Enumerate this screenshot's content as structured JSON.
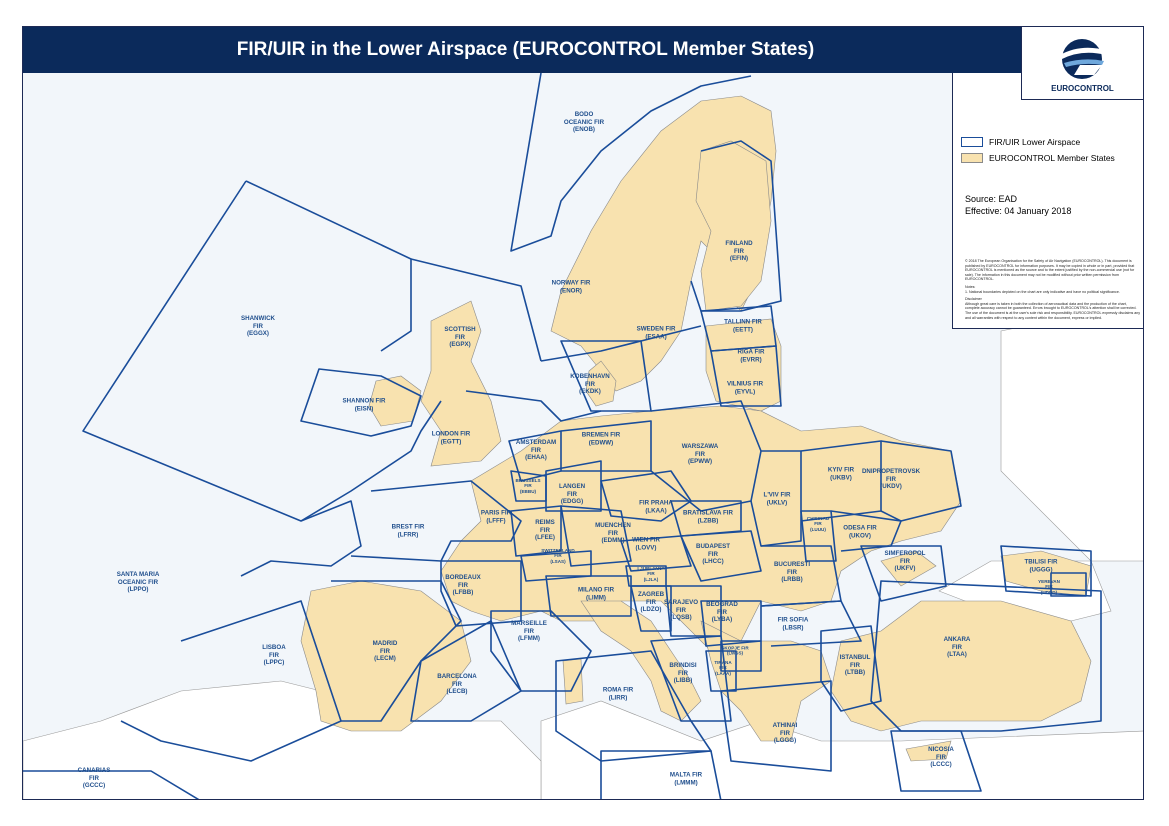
{
  "header": {
    "title": "FIR/UIR in the Lower Airspace (EUROCONTROL Member States)"
  },
  "logo": {
    "text": "EUROCONTROL"
  },
  "legend": {
    "items": [
      {
        "label": "FIR/UIR Lower Airspace",
        "kind": "fir-boundary",
        "color": "#1a4d9a"
      },
      {
        "label": "EUROCONTROL Member States",
        "kind": "member-state-fill",
        "color": "#f8e2af"
      }
    ],
    "source": "Source: EAD",
    "effective": "Effective: 04 January 2018",
    "copyright": "© 2018 The European Organisation for the Safety of Air Navigation (EUROCONTROL). This document is published by EUROCONTROL for information purposes. It may be copied in whole or in part, provided that EUROCONTROL is mentioned as the source and to the extent justified by the non-commercial use (not for sale). The information in this document may not be modified without prior written permission from EUROCONTROL.",
    "notes_title": "Notes:",
    "notes": "1. National boundaries depicted on the chart are only indicative and have no political significance.",
    "disclaimer_title": "Disclaimer",
    "disclaimer": "Although great care is taken in both the collection of aeronautical data and the production of the chart, complete accuracy cannot be guaranteed. Errors brought to EUROCONTROL's attention shall be corrected. The use of the document is at the user's sole risk and responsibility. EUROCONTROL expressly disclaims any and all warranties with respect to any content within the document, express or implied."
  },
  "colors": {
    "sea": "#f2f6fa",
    "member_state": "#f8e2af",
    "fir_line": "#1a4d9a",
    "header": "#0b2a5b",
    "label": "#1f4e8c"
  },
  "firs": [
    {
      "id": "bodo",
      "text": "BODO\nOCEANIC FIR\n(ENOB)"
    },
    {
      "id": "shanwick",
      "text": "SHANWICK\nFIR\n(EGGX)"
    },
    {
      "id": "scottish",
      "text": "SCOTTISH\nFIR\n(EGPX)"
    },
    {
      "id": "shannon",
      "text": "SHANNON FIR\n(EISN)"
    },
    {
      "id": "london",
      "text": "LONDON FIR\n(EGTT)"
    },
    {
      "id": "norway",
      "text": "NORWAY FIR\n(ENOR)"
    },
    {
      "id": "sweden",
      "text": "SWEDEN FIR\n(ESAA)"
    },
    {
      "id": "finland",
      "text": "FINLAND\nFIR\n(EFIN)"
    },
    {
      "id": "tallinn",
      "text": "TALLINN FIR\n(EETT)"
    },
    {
      "id": "riga",
      "text": "RIGA FIR\n(EVRR)"
    },
    {
      "id": "vilnius",
      "text": "VILNIUS FIR\n(EYVL)"
    },
    {
      "id": "kobenhavn",
      "text": "KOBENHAVN\nFIR\n(EKDK)"
    },
    {
      "id": "amsterdam",
      "text": "AMSTERDAM\nFIR\n(EHAA)"
    },
    {
      "id": "bremen",
      "text": "BREMEN FIR\n(EDWW)"
    },
    {
      "id": "warszawa",
      "text": "WARSZAWA\nFIR\n(EPWW)"
    },
    {
      "id": "brussels",
      "text": "BRUSSELS\nFIR\n(EBBU)",
      "small": true
    },
    {
      "id": "langen",
      "text": "LANGEN\nFIR\n(EDGG)"
    },
    {
      "id": "paris",
      "text": "PARIS FIR\n(LFFF)"
    },
    {
      "id": "reims",
      "text": "REIMS\nFIR\n(LFEE)"
    },
    {
      "id": "praha",
      "text": "FIR PRAHA\n(LKAA)"
    },
    {
      "id": "muenchen",
      "text": "MUENCHEN\nFIR\n(EDMM)"
    },
    {
      "id": "bratislava",
      "text": "BRATISLAVA FIR\n(LZBB)"
    },
    {
      "id": "lviv",
      "text": "L'VIV FIR\n(UKLV)"
    },
    {
      "id": "kyiv",
      "text": "KYIV FIR\n(UKBV)"
    },
    {
      "id": "dnipro",
      "text": "DNIPROPETROVSK\nFIR\n(UKDV)"
    },
    {
      "id": "brest",
      "text": "BREST FIR\n(LFRR)"
    },
    {
      "id": "wien",
      "text": "WIEN FIR\n(LOVV)"
    },
    {
      "id": "budapest",
      "text": "BUDAPEST\nFIR\n(LHCC)"
    },
    {
      "id": "chisinau",
      "text": "CHISINAU\nFIR\n(LUUU)",
      "small": true
    },
    {
      "id": "odesa",
      "text": "ODESA FIR\n(UKOV)"
    },
    {
      "id": "switzerland",
      "text": "SWITZERLAND\nFIR\n(LSAS)",
      "small": true
    },
    {
      "id": "bordeaux",
      "text": "BORDEAUX\nFIR\n(LFBB)"
    },
    {
      "id": "ljubljana",
      "text": "LJUBLJANA\nFIR\n(LJLA)",
      "small": true
    },
    {
      "id": "santamaria",
      "text": "SANTA MARIA\nOCEANIC FIR\n(LPPO)"
    },
    {
      "id": "milano",
      "text": "MILANO FIR\n(LIMM)"
    },
    {
      "id": "zagreb",
      "text": "ZAGREB\nFIR\n(LDZO)"
    },
    {
      "id": "sarajevo",
      "text": "SARAJEVO\nFIR\n(LQSB)"
    },
    {
      "id": "beograd",
      "text": "BEOGRAD\nFIR\n(LYBA)"
    },
    {
      "id": "bucuresti",
      "text": "BUCURESTI\nFIR\n(LRBB)"
    },
    {
      "id": "simferopol",
      "text": "SIMFEROPOL\nFIR\n(UKFV)"
    },
    {
      "id": "tbilisi",
      "text": "TBILISI FIR\n(UGGG)"
    },
    {
      "id": "yerevan",
      "text": "YEREVAN\nFIR\n(UDDD)",
      "small": true
    },
    {
      "id": "marseille",
      "text": "MARSEILLE\nFIR\n(LFMM)"
    },
    {
      "id": "sofia",
      "text": "FIR SOFIA\n(LBSR)"
    },
    {
      "id": "lisboa",
      "text": "LISBOA\nFIR\n(LPPC)"
    },
    {
      "id": "madrid",
      "text": "MADRID\nFIR\n(LECM)"
    },
    {
      "id": "barcelona",
      "text": "BARCELONA\nFIR\n(LECB)"
    },
    {
      "id": "skopje",
      "text": "SKOPJE FIR\n(LWSS)",
      "small": true
    },
    {
      "id": "ankara",
      "text": "ANKARA\nFIR\n(LTAA)"
    },
    {
      "id": "istanbul",
      "text": "ISTANBUL\nFIR\n(LTBB)"
    },
    {
      "id": "tirana",
      "text": "TIRANA\nFIR\n(LAAA)",
      "small": true
    },
    {
      "id": "brindisi",
      "text": "BRINDISI\nFIR\n(LIBB)"
    },
    {
      "id": "roma",
      "text": "ROMA FIR\n(LIRR)"
    },
    {
      "id": "athinai",
      "text": "ATHINAI\nFIR\n(LGGG)"
    },
    {
      "id": "canarias",
      "text": "CANARIAS\nFIR\n(GCCC)"
    },
    {
      "id": "malta",
      "text": "MALTA FIR\n(LMMM)"
    },
    {
      "id": "nicosia",
      "text": "NICOSIA\nFIR\n(LCCC)"
    }
  ]
}
